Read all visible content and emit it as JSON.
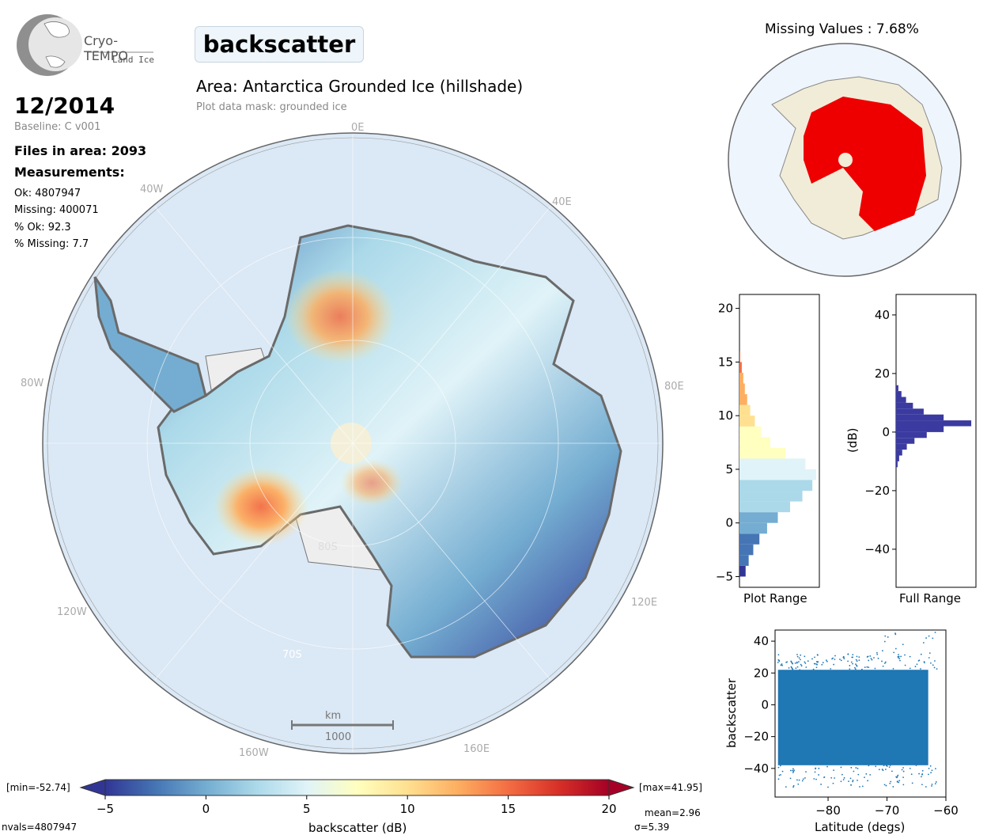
{
  "logo": {
    "name": "Cryo-TEMPO",
    "sub": "Land Ice"
  },
  "header": {
    "parameter": "backscatter",
    "area_title": "Area: Antarctica Grounded Ice (hillshade)",
    "mask_note": "Plot data mask: grounded ice"
  },
  "info": {
    "date": "12/2014",
    "baseline": "Baseline: C v001",
    "files": "Files in area: 2093",
    "measurements_label": "Measurements:",
    "ok": "Ok: 4807947",
    "missing": "Missing: 400071",
    "pct_ok": "% Ok: 92.3",
    "pct_missing": "% Missing: 7.7"
  },
  "map": {
    "lon_labels": [
      "0E",
      "40E",
      "80E",
      "120E",
      "160E",
      "160W",
      "120W",
      "80W",
      "40W"
    ],
    "lat_labels": [
      "80S",
      "70S"
    ],
    "scale_unit": "km",
    "scale_value": "1000"
  },
  "missing_map": {
    "title": "Missing Values : 7.68%"
  },
  "colorbar": {
    "min_label": "[min=-52.74]",
    "max_label": "[max=41.95]",
    "ticks": [
      "−5",
      "0",
      "5",
      "10",
      "15",
      "20"
    ],
    "label": "backscatter (dB)",
    "nvals": "nvals=4807947",
    "mean": "mean=2.96",
    "sigma": "σ=5.39",
    "colors": [
      "#313695",
      "#4575b4",
      "#74add1",
      "#abd9e9",
      "#e0f3f8",
      "#ffffbf",
      "#fee090",
      "#fdae61",
      "#f46d43",
      "#d73027",
      "#a50026"
    ]
  },
  "chart_data": [
    {
      "type": "bar",
      "orientation": "horizontal",
      "xlabel": "Plot Range",
      "ylim": [
        -6,
        21.3
      ],
      "yticks": [
        "−5",
        "0",
        "5",
        "10",
        "15",
        "20"
      ],
      "bins": [
        -5,
        -4,
        -3,
        -2,
        -1,
        0,
        1,
        2,
        3,
        4,
        5,
        6,
        7,
        8,
        9,
        10,
        11,
        12,
        13,
        14,
        15,
        16
      ],
      "values": [
        0.08,
        0.12,
        0.18,
        0.26,
        0.36,
        0.5,
        0.66,
        0.82,
        0.95,
        1.0,
        0.86,
        0.6,
        0.4,
        0.28,
        0.2,
        0.14,
        0.1,
        0.07,
        0.05,
        0.03,
        0.01,
        0.0
      ]
    },
    {
      "type": "bar",
      "orientation": "horizontal",
      "xlabel": "Full Range",
      "ylabel": "(dB)",
      "ylim": [
        -53,
        47
      ],
      "yticks": [
        "40",
        "20",
        "0",
        "−20",
        "−40"
      ],
      "bins": [
        -12,
        -10,
        -8,
        -6,
        -4,
        -2,
        0,
        2,
        4,
        6,
        8,
        10,
        12,
        14,
        16
      ],
      "values": [
        0.02,
        0.04,
        0.08,
        0.14,
        0.24,
        0.4,
        0.62,
        0.98,
        0.62,
        0.36,
        0.22,
        0.13,
        0.07,
        0.03,
        0.01
      ],
      "color": "#3a3aa0"
    },
    {
      "type": "scatter",
      "xlabel": "Latitude (degs)",
      "ylabel": "backscatter",
      "xlim": [
        -89,
        -60
      ],
      "ylim": [
        -58,
        47
      ],
      "xticks": [
        "−80",
        "−70",
        "−60"
      ],
      "yticks": [
        "40",
        "20",
        "0",
        "−20",
        "−40"
      ],
      "band": {
        "x": [
          -88.5,
          -63
        ],
        "upper": 22,
        "lower": -38
      },
      "color": "#1f77b4"
    }
  ]
}
